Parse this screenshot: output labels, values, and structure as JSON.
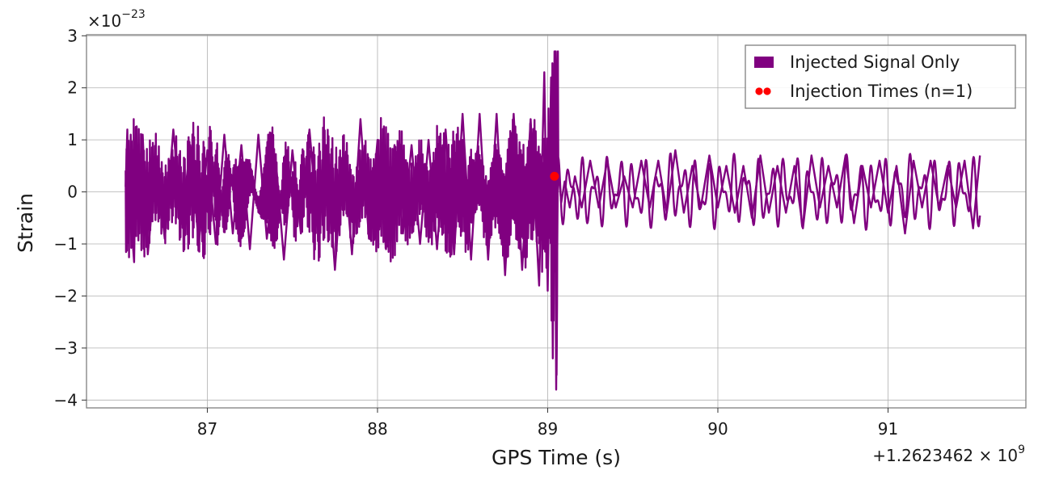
{
  "chart_data": {
    "type": "line",
    "xlabel": "GPS Time (s)",
    "ylabel": "Strain",
    "x_offset_text": "+1.2623462 × 10",
    "x_offset_exp": "9",
    "y_multiplier_text": "×10",
    "y_multiplier_exp": "−23",
    "xlim": [
      86.29,
      91.81
    ],
    "ylim": [
      -4.15,
      3.02
    ],
    "x_ticks": [
      87,
      88,
      89,
      90,
      91
    ],
    "x_tick_labels": [
      "87",
      "88",
      "89",
      "90",
      "91"
    ],
    "y_ticks": [
      3,
      2,
      1,
      0,
      -1,
      -2,
      -3,
      -4
    ],
    "y_tick_labels": [
      "3",
      "2",
      "1",
      "0",
      "−1",
      "−2",
      "−3",
      "−4"
    ],
    "grid": true,
    "legend_position": "top-right",
    "series": [
      {
        "name": "Injected Signal Only",
        "kind": "line",
        "color": "#800080",
        "x_start": 86.52,
        "x_end": 91.54,
        "points": [
          [
            86.52,
            0.1
          ],
          [
            86.53,
            1.2
          ],
          [
            86.54,
            -0.5
          ],
          [
            86.55,
            1.1
          ],
          [
            86.56,
            -0.9
          ],
          [
            86.57,
            -1.35
          ],
          [
            86.58,
            0.8
          ],
          [
            86.6,
            -0.8
          ],
          [
            86.62,
            1.1
          ],
          [
            86.65,
            -1.2
          ],
          [
            86.7,
            0.6
          ],
          [
            86.75,
            -0.9
          ],
          [
            86.8,
            1.2
          ],
          [
            86.85,
            -0.6
          ],
          [
            86.9,
            0.9
          ],
          [
            86.95,
            -1.0
          ],
          [
            87.0,
            0.8
          ],
          [
            87.05,
            -1.0
          ],
          [
            87.1,
            1.1
          ],
          [
            87.15,
            -0.8
          ],
          [
            87.2,
            0.9
          ],
          [
            87.25,
            -1.1
          ],
          [
            87.3,
            1.1
          ],
          [
            87.35,
            -0.9
          ],
          [
            87.4,
            0.7
          ],
          [
            87.45,
            -1.3
          ],
          [
            87.5,
            0.8
          ],
          [
            87.55,
            -0.8
          ],
          [
            87.6,
            1.2
          ],
          [
            87.65,
            -0.7
          ],
          [
            87.7,
            0.9
          ],
          [
            87.75,
            -1.5
          ],
          [
            87.8,
            0.8
          ],
          [
            87.85,
            -1.2
          ],
          [
            87.9,
            1.4
          ],
          [
            87.95,
            -0.9
          ],
          [
            88.0,
            1.0
          ],
          [
            88.05,
            -1.1
          ],
          [
            88.1,
            0.9
          ],
          [
            88.15,
            -0.8
          ],
          [
            88.2,
            0.9
          ],
          [
            88.25,
            -1.0
          ],
          [
            88.3,
            1.0
          ],
          [
            88.35,
            -1.1
          ],
          [
            88.4,
            1.2
          ],
          [
            88.45,
            -1.2
          ],
          [
            88.5,
            1.5
          ],
          [
            88.55,
            -1.3
          ],
          [
            88.6,
            1.5
          ],
          [
            88.65,
            -1.3
          ],
          [
            88.7,
            1.5
          ],
          [
            88.75,
            -1.6
          ],
          [
            88.8,
            1.5
          ],
          [
            88.85,
            -1.5
          ],
          [
            88.9,
            1.4
          ],
          [
            88.95,
            -1.8
          ],
          [
            88.98,
            2.3
          ],
          [
            89.0,
            -1.9
          ],
          [
            89.02,
            2.2
          ],
          [
            89.03,
            -3.2
          ],
          [
            89.04,
            2.7
          ],
          [
            89.05,
            -3.8
          ],
          [
            89.06,
            0.5
          ],
          [
            89.08,
            -0.2
          ],
          [
            89.1,
            0.2
          ],
          [
            89.13,
            -0.3
          ],
          [
            89.16,
            0.3
          ],
          [
            89.2,
            -0.3
          ],
          [
            89.25,
            0.6
          ],
          [
            89.3,
            -0.3
          ],
          [
            89.35,
            0.6
          ],
          [
            89.4,
            -0.3
          ],
          [
            89.45,
            0.3
          ],
          [
            89.5,
            -0.3
          ],
          [
            89.55,
            0.6
          ],
          [
            89.6,
            -0.3
          ],
          [
            89.65,
            0.6
          ],
          [
            89.7,
            -0.4
          ],
          [
            89.75,
            0.8
          ],
          [
            89.8,
            -0.4
          ],
          [
            89.85,
            0.5
          ],
          [
            89.9,
            -0.3
          ],
          [
            89.95,
            0.7
          ],
          [
            90.0,
            -0.3
          ],
          [
            90.05,
            0.5
          ],
          [
            90.1,
            -0.4
          ],
          [
            90.15,
            0.5
          ],
          [
            90.2,
            -0.5
          ],
          [
            90.25,
            0.7
          ],
          [
            90.3,
            -0.4
          ],
          [
            90.35,
            0.5
          ],
          [
            90.4,
            -0.4
          ],
          [
            90.45,
            0.5
          ],
          [
            90.5,
            -0.7
          ],
          [
            90.55,
            0.7
          ],
          [
            90.6,
            -0.3
          ],
          [
            90.65,
            0.5
          ],
          [
            90.7,
            -0.3
          ],
          [
            90.75,
            0.7
          ],
          [
            90.8,
            -0.6
          ],
          [
            90.85,
            0.5
          ],
          [
            90.9,
            -0.3
          ],
          [
            90.95,
            0.6
          ],
          [
            91.0,
            -0.4
          ],
          [
            91.05,
            0.5
          ],
          [
            91.1,
            -0.8
          ],
          [
            91.15,
            0.6
          ],
          [
            91.2,
            -0.3
          ],
          [
            91.25,
            0.6
          ],
          [
            91.3,
            -0.3
          ],
          [
            91.35,
            0.5
          ],
          [
            91.4,
            -0.3
          ],
          [
            91.45,
            0.6
          ],
          [
            91.5,
            -0.7
          ],
          [
            91.54,
            0.7
          ]
        ]
      },
      {
        "name": "Injection Times (n=1)",
        "kind": "scatter",
        "color": "#ff0000",
        "points": [
          [
            89.04,
            0.3
          ]
        ]
      }
    ]
  }
}
